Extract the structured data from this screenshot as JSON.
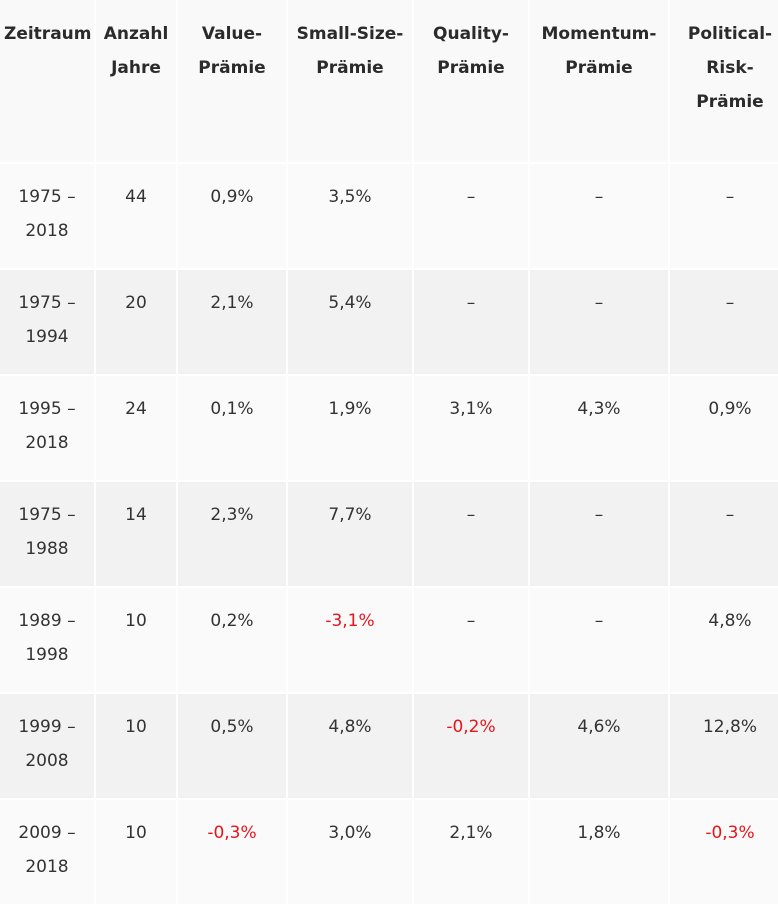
{
  "table": {
    "header": [
      "Zeitraum",
      "Anzahl Jahre",
      "Value-Prämie",
      "Small-Size-Prämie",
      "Quality-Prämie",
      "Momentum-Prämie",
      "Political-Risk-Prämie"
    ],
    "rows": [
      [
        "1975 – 2018",
        "44",
        "0,9%",
        "3,5%",
        "–",
        "–",
        "–"
      ],
      [
        "1975 – 1994",
        "20",
        "2,1%",
        "5,4%",
        "–",
        "–",
        "–"
      ],
      [
        "1995 – 2018",
        "24",
        "0,1%",
        "1,9%",
        "3,1%",
        "4,3%",
        "0,9%"
      ],
      [
        "1975 – 1988",
        "14",
        "2,3%",
        "7,7%",
        "–",
        "–",
        "–"
      ],
      [
        "1989 – 1998",
        "10",
        "0,2%",
        "-3,1%",
        "–",
        "–",
        "4,8%"
      ],
      [
        "1999 – 2008",
        "10",
        "0,5%",
        "4,8%",
        "-0,2%",
        "4,6%",
        "12,8%"
      ],
      [
        "2009 – 2018",
        "10",
        "-0,3%",
        "3,0%",
        "2,1%",
        "1,8%",
        "-0,3%"
      ]
    ],
    "negative_color": "#e8141b"
  }
}
